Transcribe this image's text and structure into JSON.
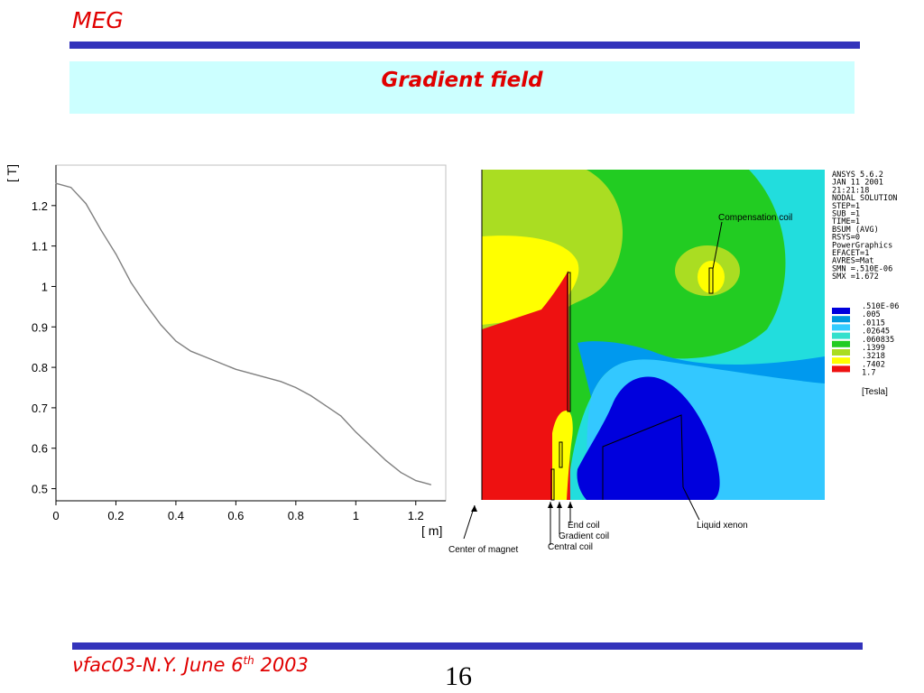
{
  "header": {
    "brand": "MEG",
    "title": "Gradient field"
  },
  "chart_data": {
    "type": "line",
    "title": "",
    "xlabel": "[ m]",
    "ylabel": "[ T]",
    "xlim": [
      0,
      1.3
    ],
    "ylim": [
      0.47,
      1.3
    ],
    "xticks": [
      0,
      0.2,
      0.4,
      0.6,
      0.8,
      1,
      1.2
    ],
    "xtick_labels": [
      "0",
      "0.2",
      "0.4",
      "0.6",
      "0.8",
      "1",
      "1.2"
    ],
    "yticks": [
      0.5,
      0.6,
      0.7,
      0.8,
      0.9,
      1.0,
      1.1,
      1.2
    ],
    "ytick_labels": [
      "0.5",
      "0.6",
      "0.7",
      "0.8",
      "0.9",
      "1",
      "1.1",
      "1.2"
    ],
    "grid": false,
    "series": [
      {
        "color": "#808080",
        "x": [
          0,
          0.05,
          0.1,
          0.15,
          0.2,
          0.25,
          0.3,
          0.35,
          0.4,
          0.45,
          0.5,
          0.55,
          0.6,
          0.65,
          0.7,
          0.75,
          0.8,
          0.85,
          0.9,
          0.95,
          1.0,
          1.05,
          1.1,
          1.15,
          1.2,
          1.25
        ],
        "y": [
          1.255,
          1.245,
          1.205,
          1.14,
          1.08,
          1.01,
          0.955,
          0.905,
          0.865,
          0.84,
          0.825,
          0.81,
          0.795,
          0.785,
          0.775,
          0.765,
          0.75,
          0.73,
          0.705,
          0.68,
          0.64,
          0.605,
          0.57,
          0.54,
          0.52,
          0.51
        ]
      }
    ]
  },
  "field_map": {
    "legend_colors": [
      "#0000dd",
      "#0099dd",
      "#33ccff",
      "#33e0cc",
      "#22cc22",
      "#aadd22",
      "#ffff00",
      "#ee1111"
    ],
    "annotations": {
      "compensation_coil": "Compensation coil",
      "end_coil": "End coil",
      "gradient_coil": "Gradient coil",
      "central_coil": "Central coil",
      "liquid_xenon": "Liquid xenon",
      "center_of_magnet": "Center of magnet"
    }
  },
  "ansys_legend": {
    "header_lines": [
      "ANSYS 5.6.2",
      "JAN 11 2001",
      "21:21:18",
      "NODAL SOLUTION",
      "STEP=1",
      "SUB =1",
      "TIME=1",
      "BSUM       (AVG)",
      "RSYS=0",
      "PowerGraphics",
      "EFACET=1",
      "AVRES=Mat",
      "SMN =.510E-06",
      "SMX =1.672"
    ],
    "levels": [
      ".510E-06",
      ".005",
      ".0115",
      ".02645",
      ".060835",
      ".1399",
      ".3218",
      ".7402",
      "1.7"
    ],
    "unit": "[Tesla]"
  },
  "footer": {
    "text": "νfac03-N.Y. June 6",
    "sup": "th",
    "year": " 2003",
    "page": "16"
  }
}
